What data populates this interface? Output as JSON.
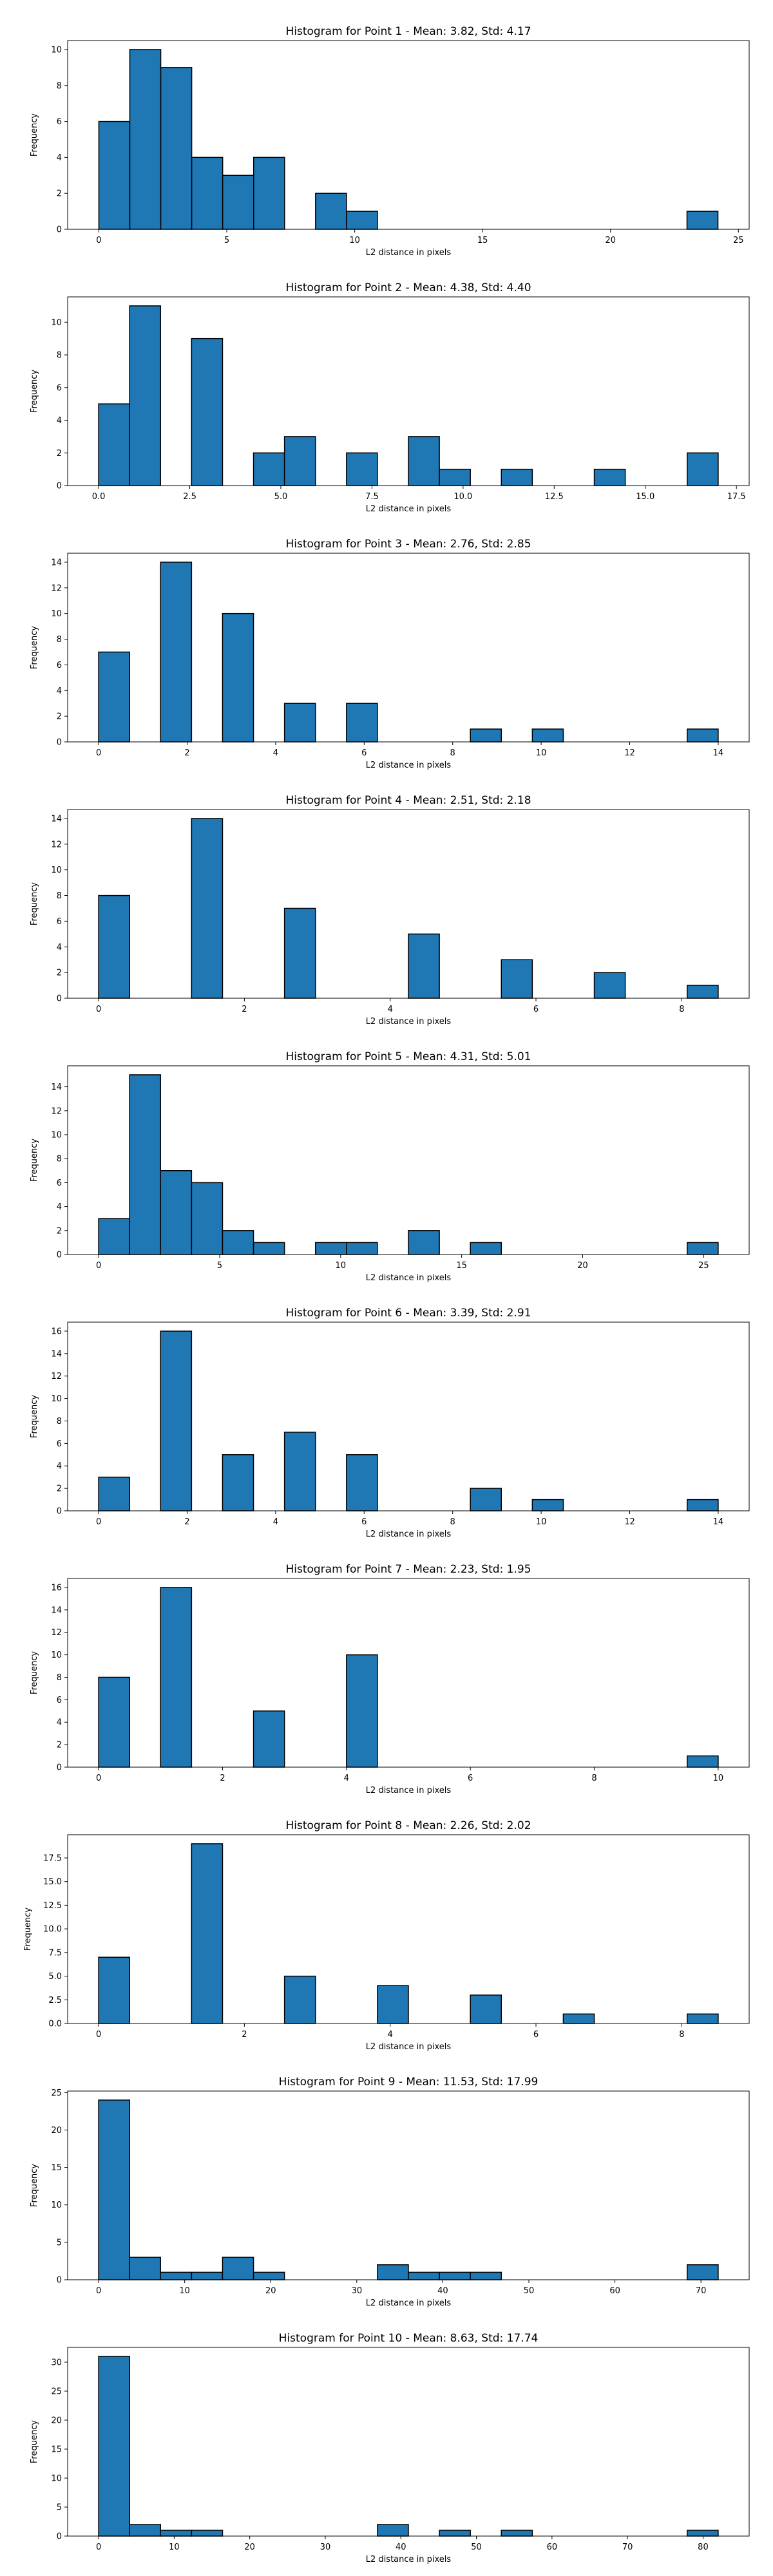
{
  "figure": {
    "background": "#ffffff",
    "bar_color": "#1f77b4",
    "edge_color": "#000000"
  },
  "chart_data": [
    {
      "type": "bar",
      "title": "Histogram for Point 1 - Mean: 3.82, Std: 4.17",
      "xlabel": "L2 distance in pixels",
      "ylabel": "Frequency",
      "xlim": [
        -1.22,
        25.42
      ],
      "ylim": [
        0,
        10.5
      ],
      "xticks": [
        0,
        5,
        10,
        15,
        20,
        25
      ],
      "yticks": [
        0,
        2,
        4,
        6,
        8,
        10
      ],
      "bin_edges": [
        0,
        1.21,
        2.42,
        3.63,
        4.84,
        6.05,
        7.26,
        8.47,
        9.68,
        10.89,
        12.1,
        13.31,
        14.52,
        15.73,
        16.94,
        18.15,
        19.36,
        20.57,
        21.78,
        22.99,
        24.2
      ],
      "values": [
        6,
        10,
        9,
        4,
        3,
        4,
        0,
        2,
        1,
        0,
        0,
        0,
        0,
        0,
        0,
        0,
        0,
        0,
        0,
        1
      ]
    },
    {
      "type": "bar",
      "title": "Histogram for Point 2 - Mean: 4.38, Std: 4.40",
      "xlabel": "L2 distance in pixels",
      "ylabel": "Frequency",
      "xlim": [
        -0.85,
        17.85
      ],
      "ylim": [
        0,
        11.55
      ],
      "xticks": [
        0.0,
        2.5,
        5.0,
        7.5,
        10.0,
        12.5,
        15.0,
        17.5
      ],
      "xtick_labels": [
        "0.0",
        "2.5",
        "5.0",
        "7.5",
        "10.0",
        "12.5",
        "15.0",
        "17.5"
      ],
      "yticks": [
        0,
        2,
        4,
        6,
        8,
        10
      ],
      "bin_edges": [
        0,
        0.85,
        1.7,
        2.55,
        3.4,
        4.25,
        5.1,
        5.95,
        6.8,
        7.65,
        8.5,
        9.35,
        10.2,
        11.05,
        11.9,
        12.75,
        13.6,
        14.45,
        15.3,
        16.15,
        17.0
      ],
      "values": [
        5,
        11,
        0,
        9,
        0,
        2,
        3,
        0,
        2,
        0,
        3,
        1,
        0,
        1,
        0,
        0,
        1,
        0,
        0,
        2
      ]
    },
    {
      "type": "bar",
      "title": "Histogram for Point 3 - Mean: 2.76, Std: 2.85",
      "xlabel": "L2 distance in pixels",
      "ylabel": "Frequency",
      "xlim": [
        -0.7,
        14.7
      ],
      "ylim": [
        0,
        14.7
      ],
      "xticks": [
        0,
        2,
        4,
        6,
        8,
        10,
        12,
        14
      ],
      "yticks": [
        0,
        2,
        4,
        6,
        8,
        10,
        12,
        14
      ],
      "bin_edges": [
        0,
        0.7,
        1.4,
        2.1,
        2.8,
        3.5,
        4.2,
        4.9,
        5.6,
        6.3,
        7.0,
        7.7,
        8.4,
        9.1,
        9.8,
        10.5,
        11.2,
        11.9,
        12.6,
        13.3,
        14.0
      ],
      "values": [
        7,
        0,
        14,
        0,
        10,
        0,
        3,
        0,
        3,
        0,
        0,
        0,
        1,
        0,
        1,
        0,
        0,
        0,
        0,
        1
      ]
    },
    {
      "type": "bar",
      "title": "Histogram for Point 4 - Mean: 2.51, Std: 2.18",
      "xlabel": "L2 distance in pixels",
      "ylabel": "Frequency",
      "xlim": [
        -0.425,
        8.925
      ],
      "ylim": [
        0,
        14.7
      ],
      "xticks": [
        0,
        2,
        4,
        6,
        8
      ],
      "yticks": [
        0,
        2,
        4,
        6,
        8,
        10,
        12,
        14
      ],
      "bin_edges": [
        0,
        0.425,
        0.85,
        1.275,
        1.7,
        2.125,
        2.55,
        2.975,
        3.4,
        3.825,
        4.25,
        4.675,
        5.1,
        5.525,
        5.95,
        6.375,
        6.8,
        7.225,
        7.65,
        8.075,
        8.5
      ],
      "values": [
        8,
        0,
        0,
        14,
        0,
        0,
        7,
        0,
        0,
        0,
        5,
        0,
        0,
        3,
        0,
        0,
        2,
        0,
        0,
        1
      ]
    },
    {
      "type": "bar",
      "title": "Histogram for Point 5 - Mean: 4.31, Std: 5.01",
      "xlabel": "L2 distance in pixels",
      "ylabel": "Frequency",
      "xlim": [
        -1.28,
        26.88
      ],
      "ylim": [
        0,
        15.75
      ],
      "xticks": [
        0,
        5,
        10,
        15,
        20,
        25
      ],
      "yticks": [
        0,
        2,
        4,
        6,
        8,
        10,
        12,
        14
      ],
      "bin_edges": [
        0,
        1.28,
        2.56,
        3.84,
        5.12,
        6.4,
        7.68,
        8.96,
        10.24,
        11.52,
        12.8,
        14.08,
        15.36,
        16.64,
        17.92,
        19.2,
        20.48,
        21.76,
        23.04,
        24.32,
        25.6
      ],
      "values": [
        3,
        15,
        7,
        6,
        2,
        1,
        0,
        1,
        1,
        0,
        2,
        0,
        1,
        0,
        0,
        0,
        0,
        0,
        0,
        1
      ]
    },
    {
      "type": "bar",
      "title": "Histogram for Point 6 - Mean: 3.39, Std: 2.91",
      "xlabel": "L2 distance in pixels",
      "ylabel": "Frequency",
      "xlim": [
        -0.7,
        14.7
      ],
      "ylim": [
        0,
        16.8
      ],
      "xticks": [
        0,
        2,
        4,
        6,
        8,
        10,
        12,
        14
      ],
      "yticks": [
        0,
        2,
        4,
        6,
        8,
        10,
        12,
        14,
        16
      ],
      "bin_edges": [
        0,
        0.7,
        1.4,
        2.1,
        2.8,
        3.5,
        4.2,
        4.9,
        5.6,
        6.3,
        7.0,
        7.7,
        8.4,
        9.1,
        9.8,
        10.5,
        11.2,
        11.9,
        12.6,
        13.3,
        14.0
      ],
      "values": [
        3,
        0,
        16,
        0,
        5,
        0,
        7,
        0,
        5,
        0,
        0,
        0,
        2,
        0,
        1,
        0,
        0,
        0,
        0,
        1
      ]
    },
    {
      "type": "bar",
      "title": "Histogram for Point 7 - Mean: 2.23, Std: 1.95",
      "xlabel": "L2 distance in pixels",
      "ylabel": "Frequency",
      "xlim": [
        -0.5,
        10.5
      ],
      "ylim": [
        0,
        16.8
      ],
      "xticks": [
        0,
        2,
        4,
        6,
        8,
        10
      ],
      "yticks": [
        0,
        2,
        4,
        6,
        8,
        10,
        12,
        14,
        16
      ],
      "bin_edges": [
        0,
        0.5,
        1.0,
        1.5,
        2.0,
        2.5,
        3.0,
        3.5,
        4.0,
        4.5,
        5.0,
        5.5,
        6.0,
        6.5,
        7.0,
        7.5,
        8.0,
        8.5,
        9.0,
        9.5,
        10.0
      ],
      "values": [
        8,
        0,
        16,
        0,
        0,
        5,
        0,
        0,
        10,
        0,
        0,
        0,
        0,
        0,
        0,
        0,
        0,
        0,
        0,
        1
      ]
    },
    {
      "type": "bar",
      "title": "Histogram for Point 8 - Mean: 2.26, Std: 2.02",
      "xlabel": "L2 distance in pixels",
      "ylabel": "Frequency",
      "xlim": [
        -0.425,
        8.925
      ],
      "ylim": [
        0,
        19.95
      ],
      "xticks": [
        0,
        2,
        4,
        6,
        8
      ],
      "yticks": [
        0.0,
        2.5,
        5.0,
        7.5,
        10.0,
        12.5,
        15.0,
        17.5
      ],
      "ytick_labels": [
        "0.0",
        "2.5",
        "5.0",
        "7.5",
        "10.0",
        "12.5",
        "15.0",
        "17.5"
      ],
      "bin_edges": [
        0,
        0.425,
        0.85,
        1.275,
        1.7,
        2.125,
        2.55,
        2.975,
        3.4,
        3.825,
        4.25,
        4.675,
        5.1,
        5.525,
        5.95,
        6.375,
        6.8,
        7.225,
        7.65,
        8.075,
        8.5
      ],
      "values": [
        7,
        0,
        0,
        19,
        0,
        0,
        5,
        0,
        0,
        4,
        0,
        0,
        3,
        0,
        0,
        1,
        0,
        0,
        0,
        1
      ]
    },
    {
      "type": "bar",
      "title": "Histogram for Point 9 - Mean: 11.53, Std: 17.99",
      "xlabel": "L2 distance in pixels",
      "ylabel": "Frequency",
      "xlim": [
        -3.6,
        75.6
      ],
      "ylim": [
        0,
        25.2
      ],
      "xticks": [
        0,
        10,
        20,
        30,
        40,
        50,
        60,
        70
      ],
      "yticks": [
        0,
        5,
        10,
        15,
        20,
        25
      ],
      "bin_edges": [
        0,
        3.6,
        7.2,
        10.8,
        14.4,
        18.0,
        21.6,
        25.2,
        28.8,
        32.4,
        36.0,
        39.6,
        43.2,
        46.8,
        50.4,
        54.0,
        57.6,
        61.2,
        64.8,
        68.4,
        72.0
      ],
      "values": [
        24,
        3,
        1,
        1,
        3,
        1,
        0,
        0,
        0,
        2,
        1,
        1,
        1,
        0,
        0,
        0,
        0,
        0,
        0,
        2
      ]
    },
    {
      "type": "bar",
      "title": "Histogram for Point 10 - Mean: 8.63, Std: 17.74",
      "xlabel": "L2 distance in pixels",
      "ylabel": "Frequency",
      "xlim": [
        -4.1,
        86.1
      ],
      "ylim": [
        0,
        32.55
      ],
      "xticks": [
        0,
        10,
        20,
        30,
        40,
        50,
        60,
        70,
        80
      ],
      "yticks": [
        0,
        5,
        10,
        15,
        20,
        25,
        30
      ],
      "bin_edges": [
        0,
        4.1,
        8.2,
        12.3,
        16.4,
        20.5,
        24.6,
        28.7,
        32.8,
        36.9,
        41.0,
        45.1,
        49.2,
        53.3,
        57.4,
        61.5,
        65.6,
        69.7,
        73.8,
        77.9,
        82.0
      ],
      "values": [
        31,
        2,
        1,
        1,
        0,
        0,
        0,
        0,
        0,
        2,
        0,
        1,
        0,
        1,
        0,
        0,
        0,
        0,
        0,
        1
      ]
    }
  ]
}
